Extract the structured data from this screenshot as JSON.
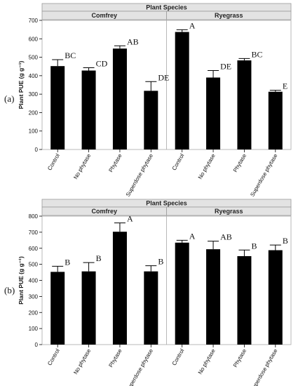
{
  "chart_data": [
    {
      "panel_label": "(a)",
      "type": "bar",
      "facet_title": "Plant Species",
      "ylabel": "Plant PUE (g g⁻¹)",
      "ylim": [
        0,
        700
      ],
      "yticks": [
        0,
        100,
        200,
        300,
        400,
        500,
        600,
        700
      ],
      "facets": [
        {
          "name": "Comfrey",
          "categories": [
            "Control",
            "No phytase",
            "Phytase",
            "Superdose phytase"
          ],
          "values": [
            452,
            428,
            547,
            318
          ],
          "errors": [
            35,
            15,
            15,
            50
          ],
          "letters": [
            "BC",
            "CD",
            "AB",
            "DE"
          ]
        },
        {
          "name": "Ryegrass",
          "categories": [
            "Control",
            "No phytase",
            "Phytase",
            "Superdose phytase"
          ],
          "values": [
            637,
            390,
            483,
            313
          ],
          "errors": [
            12,
            38,
            10,
            8
          ],
          "letters": [
            "A",
            "DE",
            "BC",
            "E"
          ]
        }
      ]
    },
    {
      "panel_label": "(b)",
      "type": "bar",
      "facet_title": "Plant Species",
      "ylabel": "Plant PUE (g g⁻¹)",
      "ylim": [
        0,
        800
      ],
      "yticks": [
        0,
        100,
        200,
        300,
        400,
        500,
        600,
        700,
        800
      ],
      "facets": [
        {
          "name": "Comfrey",
          "categories": [
            "Control",
            "No phytase",
            "Phytase",
            "Superdose phytase"
          ],
          "values": [
            453,
            456,
            703,
            456
          ],
          "errors": [
            35,
            55,
            55,
            35
          ],
          "letters": [
            "B",
            "B",
            "A",
            "B"
          ]
        },
        {
          "name": "Ryegrass",
          "categories": [
            "Control",
            "No phytase",
            "Phytase",
            "Superdose phytase"
          ],
          "values": [
            635,
            594,
            551,
            588
          ],
          "errors": [
            15,
            50,
            38,
            32
          ],
          "letters": [
            "A",
            "AB",
            "B",
            "B"
          ]
        }
      ]
    }
  ]
}
